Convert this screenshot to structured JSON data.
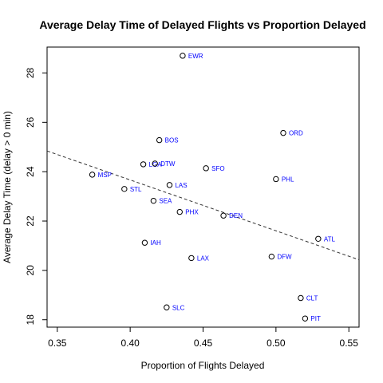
{
  "chart_data": {
    "type": "scatter",
    "title": "Average Delay Time of Delayed Flights vs Proportion Delayed",
    "xlabel": "Proportion of Flights Delayed",
    "ylabel": "Average Delay Time (delay > 0 min)",
    "xlim": [
      0.343,
      0.557
    ],
    "ylim": [
      17.7,
      29.05
    ],
    "xticks": [
      0.35,
      0.4,
      0.45,
      0.5,
      0.55
    ],
    "xtick_labels": [
      "0.35",
      "0.40",
      "0.45",
      "0.50",
      "0.55"
    ],
    "yticks": [
      18,
      20,
      22,
      24,
      26,
      28
    ],
    "ytick_labels": [
      "18",
      "20",
      "22",
      "24",
      "26",
      "28"
    ],
    "point_color": "#000000",
    "label_color": "#0000ff",
    "points": [
      {
        "label": "EWR",
        "x": 0.436,
        "y": 28.7
      },
      {
        "label": "BOS",
        "x": 0.42,
        "y": 25.28
      },
      {
        "label": "ORD",
        "x": 0.505,
        "y": 25.57
      },
      {
        "label": "LGA",
        "x": 0.409,
        "y": 24.3
      },
      {
        "label": "DTW",
        "x": 0.417,
        "y": 24.33
      },
      {
        "label": "SFO",
        "x": 0.452,
        "y": 24.14
      },
      {
        "label": "MSP",
        "x": 0.374,
        "y": 23.88
      },
      {
        "label": "PHL",
        "x": 0.5,
        "y": 23.7
      },
      {
        "label": "LAS",
        "x": 0.427,
        "y": 23.46
      },
      {
        "label": "STL",
        "x": 0.396,
        "y": 23.3
      },
      {
        "label": "SEA",
        "x": 0.416,
        "y": 22.82
      },
      {
        "label": "PHX",
        "x": 0.434,
        "y": 22.37
      },
      {
        "label": "DEN",
        "x": 0.464,
        "y": 22.22
      },
      {
        "label": "ATL",
        "x": 0.529,
        "y": 21.28
      },
      {
        "label": "IAH",
        "x": 0.41,
        "y": 21.12
      },
      {
        "label": "LAX",
        "x": 0.442,
        "y": 20.5
      },
      {
        "label": "DFW",
        "x": 0.497,
        "y": 20.56
      },
      {
        "label": "CLT",
        "x": 0.517,
        "y": 18.88
      },
      {
        "label": "SLC",
        "x": 0.425,
        "y": 18.5
      },
      {
        "label": "PIT",
        "x": 0.52,
        "y": 18.05
      }
    ],
    "trendline": {
      "style": "dashed",
      "x": [
        0.343,
        0.557
      ],
      "y": [
        24.84,
        20.43
      ]
    },
    "grid": false,
    "legend": "none"
  }
}
